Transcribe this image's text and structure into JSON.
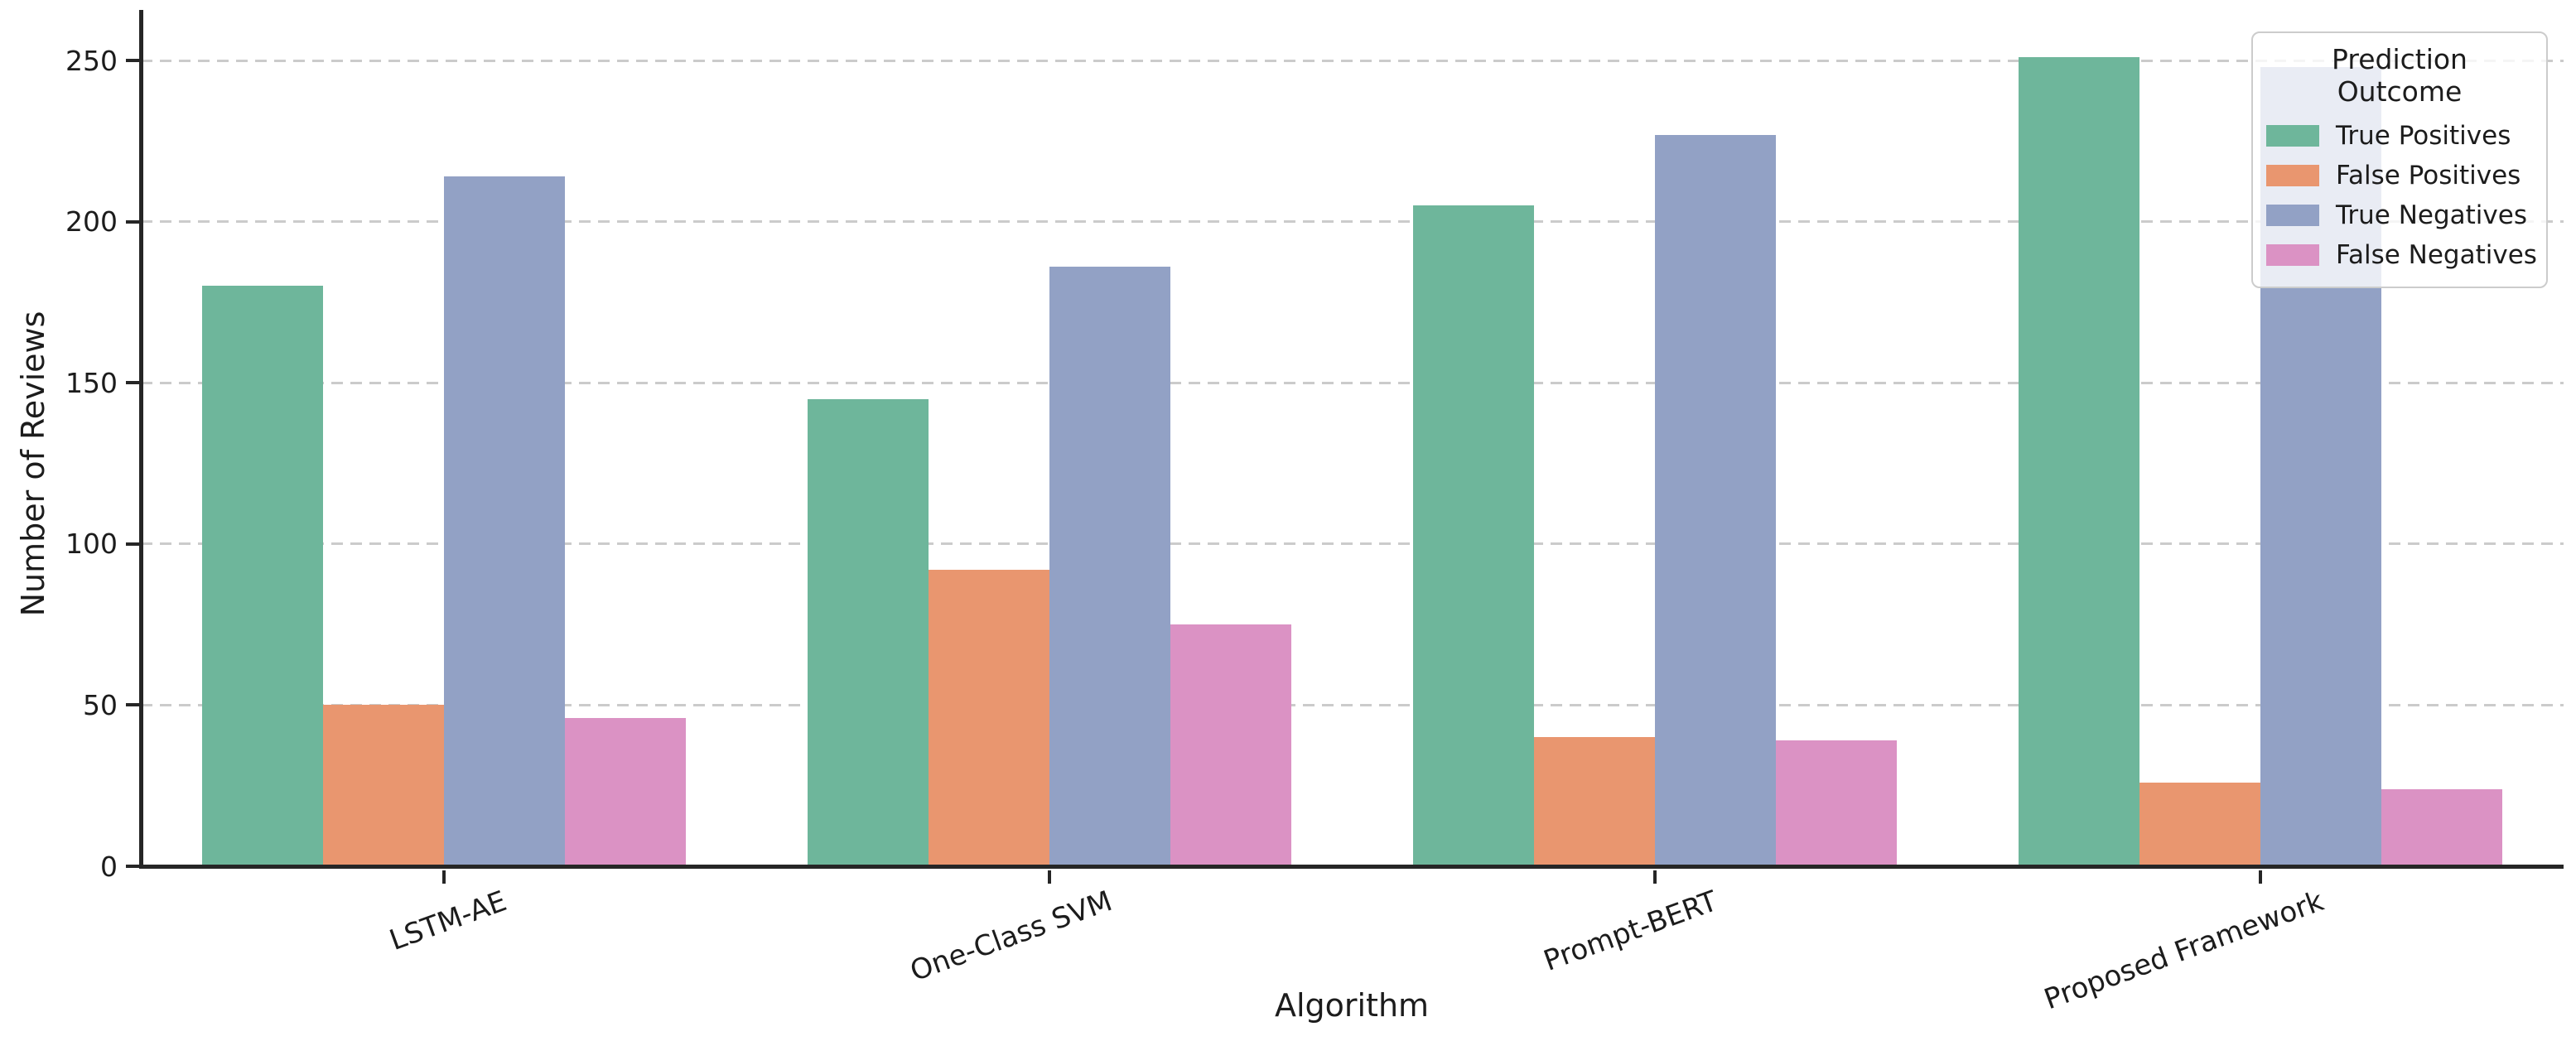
{
  "chart_data": {
    "type": "bar",
    "title": "",
    "xlabel": "Algorithm",
    "ylabel": "Number of Reviews",
    "categories": [
      "LSTM-AE",
      "One-Class SVM",
      "Prompt-BERT",
      "Proposed Framework"
    ],
    "series": [
      {
        "name": "True Positives",
        "color": "#6eb69b",
        "values": [
          180,
          145,
          205,
          251
        ]
      },
      {
        "name": "False Positives",
        "color": "#e9966f",
        "values": [
          50,
          92,
          40,
          26
        ]
      },
      {
        "name": "True Negatives",
        "color": "#92a1c5",
        "values": [
          214,
          186,
          227,
          248
        ]
      },
      {
        "name": "False Negatives",
        "color": "#db92c4",
        "values": [
          46,
          75,
          39,
          24
        ]
      }
    ],
    "ylim": [
      0,
      267
    ],
    "yticks": [
      0,
      50,
      100,
      150,
      200,
      250
    ],
    "ytick_labels": [
      "0",
      "50",
      "100",
      "150",
      "200",
      "250"
    ],
    "legend": {
      "title": "Prediction Outcome",
      "position": "upper right"
    },
    "grid": {
      "axis": "y",
      "style": "dashed",
      "color": "#cbcbcb"
    }
  },
  "colors": {
    "axis_spine": "#262626",
    "text": "#1c1c1c",
    "background": "#ffffff",
    "gridline": "#cbcbcb",
    "legend_border": "#cccccc",
    "legend_background": "rgba(255,255,255,0.8)"
  }
}
